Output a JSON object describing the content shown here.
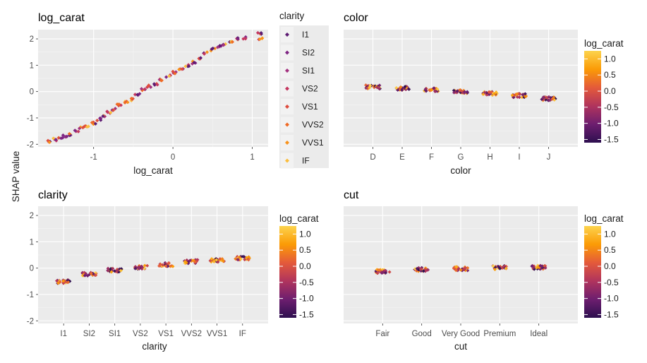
{
  "y_axis_label": "SHAP value",
  "palette": {
    "panel_bg": "#ebebeb",
    "grid_major": "#ffffff",
    "grid_minor": "#f5f5f5",
    "gradient_stops": [
      "#2d0f4f",
      "#6d1e6f",
      "#b0345d",
      "#e45a3a",
      "#fb9b06",
      "#fcd34d"
    ],
    "clarity_colors": [
      "#5c1a72",
      "#7e2483",
      "#a3307e",
      "#c4355e",
      "#de4b3d",
      "#ef6a24",
      "#f8921a",
      "#fbbd3d"
    ]
  },
  "clarity_legend": {
    "title": "clarity",
    "labels": [
      "I1",
      "SI2",
      "SI1",
      "VS2",
      "VS1",
      "VVS2",
      "VVS1",
      "IF"
    ]
  },
  "colorbar": {
    "title": "log_carat",
    "min": -1.6,
    "max": 1.25,
    "ticks": [
      1.0,
      0.5,
      0.0,
      -0.5,
      -1.0,
      -1.5
    ],
    "tick_labels": [
      "1.0",
      "0.5",
      "0.0",
      "-0.5",
      "-1.0",
      "-1.5"
    ]
  },
  "chart_data": [
    {
      "id": "log_carat",
      "type": "scatter",
      "title": "log_carat",
      "xlabel": "log_carat",
      "ylabel": "SHAP value",
      "xlim": [
        -1.7,
        1.2
      ],
      "ylim": [
        -2.1,
        2.35
      ],
      "x_ticks": [
        -1,
        0,
        1
      ],
      "x_tick_labels": [
        "-1",
        "0",
        "1"
      ],
      "y_ticks": [
        2,
        1,
        0,
        -1,
        -2
      ],
      "y_tick_labels": [
        "2",
        "1",
        "0",
        "-1",
        "-2"
      ],
      "color_by": "clarity",
      "points": [
        [
          -1.55,
          -1.9
        ],
        [
          -1.48,
          -1.82
        ],
        [
          -1.42,
          -1.75
        ],
        [
          -1.36,
          -1.7
        ],
        [
          -1.3,
          -1.62
        ],
        [
          -1.22,
          -1.5
        ],
        [
          -1.15,
          -1.38
        ],
        [
          -1.08,
          -1.3
        ],
        [
          -1.0,
          -1.2
        ],
        [
          -0.93,
          -1.05
        ],
        [
          -0.86,
          -0.9
        ],
        [
          -0.8,
          -0.78
        ],
        [
          -0.74,
          -0.66
        ],
        [
          -0.68,
          -0.52
        ],
        [
          -0.6,
          -0.42
        ],
        [
          -0.52,
          -0.3
        ],
        [
          -0.45,
          -0.1
        ],
        [
          -0.38,
          0.08
        ],
        [
          -0.3,
          0.2
        ],
        [
          -0.22,
          0.3
        ],
        [
          -0.14,
          0.45
        ],
        [
          -0.06,
          0.58
        ],
        [
          0.02,
          0.72
        ],
        [
          0.1,
          0.85
        ],
        [
          0.18,
          0.97
        ],
        [
          0.26,
          1.1
        ],
        [
          0.34,
          1.28
        ],
        [
          0.42,
          1.45
        ],
        [
          0.5,
          1.6
        ],
        [
          0.58,
          1.72
        ],
        [
          0.66,
          1.8
        ],
        [
          0.74,
          1.9
        ],
        [
          0.82,
          2.0
        ],
        [
          0.9,
          2.05
        ],
        [
          1.1,
          2.2
        ],
        [
          1.1,
          2.0
        ]
      ]
    },
    {
      "id": "color",
      "type": "scatter",
      "title": "color",
      "xlabel": "color",
      "ylabel": "SHAP value",
      "categories": [
        "D",
        "E",
        "F",
        "G",
        "H",
        "I",
        "J"
      ],
      "values": [
        0.18,
        0.12,
        0.07,
        0.0,
        -0.07,
        -0.15,
        -0.27
      ],
      "color_by": "log_carat"
    },
    {
      "id": "clarity",
      "type": "scatter",
      "title": "clarity",
      "xlabel": "clarity",
      "ylabel": "SHAP value",
      "ylim": [
        -2.1,
        2.35
      ],
      "y_ticks": [
        2,
        1,
        0,
        -1,
        -2
      ],
      "y_tick_labels": [
        "2",
        "1",
        "0",
        "-1",
        "-2"
      ],
      "categories": [
        "I1",
        "SI2",
        "SI1",
        "VS2",
        "VS1",
        "VVS2",
        "VVS1",
        "IF"
      ],
      "values": [
        -0.52,
        -0.22,
        -0.08,
        0.03,
        0.13,
        0.25,
        0.3,
        0.38
      ],
      "color_by": "log_carat"
    },
    {
      "id": "cut",
      "type": "scatter",
      "title": "cut",
      "xlabel": "cut",
      "ylabel": "SHAP value",
      "categories": [
        "Fair",
        "Good",
        "Very Good",
        "Premium",
        "Ideal"
      ],
      "values": [
        -0.12,
        -0.05,
        -0.02,
        0.02,
        0.03
      ],
      "color_by": "log_carat"
    }
  ]
}
